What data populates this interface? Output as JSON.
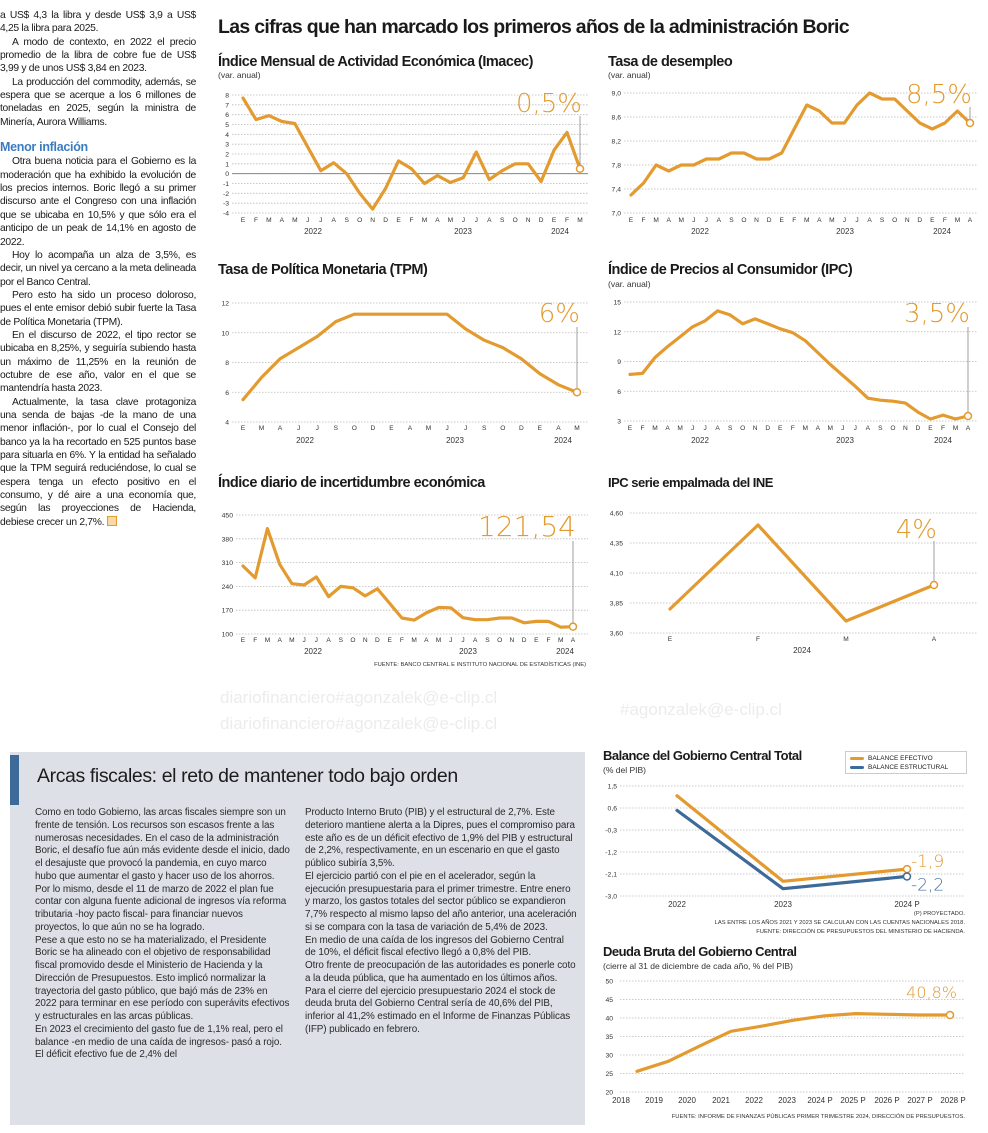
{
  "watermarks": [
    "#agonzalek@e-clip.cl",
    "diariofinanciero#agonzalek@e-clip.cl",
    "diariofinanciero#agonzalek@e-clip.cl"
  ],
  "headline": "Las cifras que han marcado los primeros años de la administración Boric",
  "left_column": {
    "paragraphs_top": [
      "a US$ 4,3 la libra y desde US$ 3,9 a US$ 4,25 la libra para 2025.",
      "A modo de contexto, en 2022 el precio promedio de la libra de cobre fue de US$ 3,99 y de unos US$ 3,84 en 2023.",
      "La producción del commodity, además, se espera que se acerque a los 6 millones de toneladas en 2025, según la ministra de Minería, Aurora Williams."
    ],
    "subheading": "Menor inflación",
    "paragraphs_bottom": [
      "Otra buena noticia para el Gobierno es la moderación que ha exhibido la evolución de los precios internos. Boric llegó a su primer discurso ante el Congreso con una inflación que se ubicaba en 10,5% y que sólo era el anticipo de un peak de 14,1% en agosto de 2022.",
      "Hoy lo acompaña un alza de 3,5%, es decir, un nivel ya cercano a la meta delineada por el Banco Central.",
      "Pero esto ha sido un proceso doloroso, pues el ente emisor debió subir fuerte la Tasa de Política Monetaria (TPM).",
      "En el discurso de 2022, el tipo rector se ubicaba en 8,25%, y seguiría subiendo hasta un máximo de 11,25% en la reunión de octubre de ese año, valor en el que se mantendría hasta 2023.",
      "Actualmente, la tasa clave protagoniza una senda de bajas -de la mano de una menor inflación-, por lo cual el Consejo del banco ya la ha recortado en 525 puntos base para situarla en 6%. Y la entidad ha señalado que la TPM seguirá reduciéndose, lo cual se espera tenga un efecto positivo en el consumo, y dé aire a una economía que, según las proyecciones de Hacienda, debiese crecer un 2,7%."
    ]
  },
  "charts_text": {
    "imacec_title": "Índice Mensual de Actividad Económica (Imacec)",
    "imacec_sub": "(var. anual)",
    "desempleo_title": "Tasa de desempleo",
    "desempleo_sub": "(var. anual)",
    "tpm_title": "Tasa de Política Monetaria (TPM)",
    "ipc_title": "Índice de Precios al Consumidor (IPC)",
    "ipc_sub": "(var. anual)",
    "incert_title": "Índice diario de incertidumbre económica",
    "ipcine_title": "IPC serie empalmada del INE",
    "fuente_top": "FUENTE: BANCO CENTRAL E INSTITUTO NACIONAL DE ESTADÍSTICAS (INE)",
    "balance_title": "Balance del Gobierno Central Total",
    "balance_sub": "(% del PIB)",
    "legend_efectivo": "BALANCE EFECTIVO",
    "legend_estructural": "BALANCE ESTRUCTURAL",
    "balance_note1": "(P) PROYECTADO.",
    "balance_note2": "LAS ENTRE LOS AÑOS 2021 Y 2023 SE CALCULAN  CON LAS CUENTAS NACIONALES 2018.",
    "balance_note3": "FUENTE: DIRECCIÓN DE PRESUPUESTOS DEL MINISTERIO DE HACIENDA.",
    "deuda_title": "Deuda Bruta del Gobierno Central",
    "deuda_sub": "(cierre al 31 de diciembre de cada año, % del PIB)",
    "deuda_fuente": "FUENTE: INFORME DE FINANZAS PÚBLICAS PRIMER TRIMESTRE 2024, DIRECCIÓN DE PRESUPUESTOS."
  },
  "box": {
    "title": "Arcas fiscales: el reto de mantener todo bajo orden",
    "col1": [
      "Como en todo Gobierno, las arcas fiscales siempre son un frente de tensión. Los recursos son escasos frente a las numerosas necesidades. En el caso de la administración Boric, el desafío fue aún más evidente desde el inicio, dado el desajuste que provocó la pandemia, en cuyo marco hubo que aumentar el gasto y hacer uso de los ahorros.",
      "Por lo mismo, desde el 11 de marzo de 2022 el plan fue contar con alguna fuente adicional de ingresos vía reforma tributaria -hoy pacto fiscal- para financiar nuevos proyectos, lo que aún no se ha logrado.",
      "Pese a que esto no se ha materializado, el Presidente Boric se ha alineado con el objetivo de responsabilidad fiscal promovido desde el Ministerio de Hacienda y la Dirección de Presupuestos. Esto implicó normalizar la trayectoria del gasto público, que bajó más de 23% en 2022 para terminar en ese período con superávits efectivos y estructurales en las arcas públicas.",
      "En 2023 el crecimiento del gasto fue de 1,1% real, pero el balance -en medio de una caída de ingresos- pasó a rojo. El déficit efectivo fue de 2,4% del"
    ],
    "col2": [
      "Producto Interno Bruto (PIB) y el estructural de 2,7%. Este deterioro mantiene alerta a la Dipres, pues el compromiso para este año es de un déficit efectivo de 1,9% del PIB y estructural de 2,2%, respectivamente, en un escenario en que el gasto público subiría 3,5%.",
      "El ejercicio partió con el pie en el acelerador, según la ejecución presupuestaria para el primer trimestre. Entre enero y marzo, los gastos totales del sector público se expandieron 7,7% respecto al mismo lapso del año anterior, una aceleración si se compara con la tasa de variación de 5,4% de 2023.",
      "En medio de una caída de los ingresos del Gobierno Central de 10%, el déficit fiscal efectivo llegó a 0,8% del PIB.",
      "Otro frente de preocupación de las autoridades es ponerle coto a la deuda pública, que ha aumentado en los últimos años.",
      "Para el cierre del ejercicio presupuestario 2024 el stock de deuda bruta del Gobierno Central sería de 40,6% del PIB, inferior al 41,2% estimado en el Informe de Finanzas Públicas (IFP) publicado en febrero."
    ]
  },
  "chart_data": [
    {
      "id": "imacec",
      "type": "line",
      "title": "Índice Mensual de Actividad Económica (Imacec)",
      "ylabel": "(var. anual)",
      "ylim": [
        -4,
        8
      ],
      "y_ticks": [
        "8",
        "7",
        "6",
        "5",
        "4",
        "3",
        "2",
        "1",
        "0",
        "-1",
        "-2",
        "-3",
        "-4"
      ],
      "x": [
        "E",
        "F",
        "M",
        "A",
        "M",
        "J",
        "J",
        "A",
        "S",
        "O",
        "N",
        "D",
        "E",
        "F",
        "M",
        "A",
        "M",
        "J",
        "J",
        "A",
        "S",
        "O",
        "N",
        "D",
        "E",
        "F",
        "M"
      ],
      "years": [
        "2022",
        "2023",
        "2024"
      ],
      "series": [
        {
          "color": "#e39a2e",
          "end_label": "0,5%",
          "values": [
            7.7,
            5.5,
            5.9,
            5.3,
            5.1,
            2.7,
            0.3,
            1.1,
            0.0,
            -2.0,
            -3.6,
            -1.5,
            1.3,
            0.5,
            -1.0,
            -0.2,
            -0.9,
            -0.4,
            2.2,
            -0.6,
            0.3,
            1.0,
            1.0,
            -0.8,
            2.4,
            4.2,
            0.5
          ]
        }
      ]
    },
    {
      "id": "desempleo",
      "type": "line",
      "title": "Tasa de desempleo",
      "ylabel": "(var. anual)",
      "ylim": [
        7.0,
        9.0
      ],
      "y_ticks": [
        "9,0",
        "8,6",
        "8,2",
        "7,8",
        "7,4",
        "7,0"
      ],
      "x": [
        "E",
        "F",
        "M",
        "A",
        "M",
        "J",
        "J",
        "A",
        "S",
        "O",
        "N",
        "D",
        "E",
        "F",
        "M",
        "A",
        "M",
        "J",
        "J",
        "A",
        "S",
        "O",
        "N",
        "D",
        "E",
        "F",
        "M",
        "A"
      ],
      "years": [
        "2022",
        "2023",
        "2024"
      ],
      "series": [
        {
          "color": "#e39a2e",
          "end_label": "8,5%",
          "values": [
            7.3,
            7.5,
            7.8,
            7.7,
            7.8,
            7.8,
            7.9,
            7.9,
            8.0,
            8.0,
            7.9,
            7.9,
            8.0,
            8.4,
            8.8,
            8.7,
            8.5,
            8.5,
            8.8,
            9.0,
            8.9,
            8.9,
            8.7,
            8.5,
            8.4,
            8.5,
            8.7,
            8.5
          ]
        }
      ]
    },
    {
      "id": "tpm",
      "type": "line",
      "title": "Tasa de Política Monetaria (TPM)",
      "ylim": [
        4,
        12
      ],
      "y_ticks": [
        "12",
        "10",
        "8",
        "6",
        "4"
      ],
      "x": [
        "E",
        "M",
        "A",
        "J",
        "J",
        "S",
        "O",
        "D",
        "E",
        "A",
        "M",
        "J",
        "J",
        "S",
        "O",
        "D",
        "E",
        "A",
        "M"
      ],
      "years": [
        "2022",
        "2023",
        "2024"
      ],
      "series": [
        {
          "color": "#e39a2e",
          "end_label": "6%",
          "values": [
            5.5,
            7.0,
            8.25,
            9.0,
            9.75,
            10.75,
            11.25,
            11.25,
            11.25,
            11.25,
            11.25,
            11.25,
            10.25,
            9.5,
            9.0,
            8.25,
            7.25,
            6.5,
            6.0
          ]
        }
      ]
    },
    {
      "id": "ipc",
      "type": "line",
      "title": "Índice de Precios al Consumidor (IPC)",
      "ylabel": "(var. anual)",
      "ylim": [
        3,
        15
      ],
      "y_ticks": [
        "15",
        "12",
        "9",
        "6",
        "3"
      ],
      "x": [
        "E",
        "F",
        "M",
        "A",
        "M",
        "J",
        "J",
        "A",
        "S",
        "O",
        "N",
        "D",
        "E",
        "F",
        "M",
        "A",
        "M",
        "J",
        "J",
        "A",
        "S",
        "O",
        "N",
        "D",
        "E",
        "F",
        "M",
        "A"
      ],
      "years": [
        "2022",
        "2023",
        "2024"
      ],
      "series": [
        {
          "color": "#e39a2e",
          "end_label": "3,5%",
          "values": [
            7.7,
            7.8,
            9.4,
            10.5,
            11.5,
            12.5,
            13.1,
            14.1,
            13.7,
            12.8,
            13.3,
            12.8,
            12.3,
            11.9,
            11.1,
            9.9,
            8.7,
            7.6,
            6.5,
            5.3,
            5.1,
            5.0,
            4.8,
            3.9,
            3.2,
            3.6,
            3.2,
            3.5
          ]
        }
      ]
    },
    {
      "id": "incertidumbre",
      "type": "line",
      "title": "Índice diario de incertidumbre económica",
      "ylim": [
        100,
        450
      ],
      "y_ticks": [
        "450",
        "380",
        "310",
        "240",
        "170",
        "100"
      ],
      "x": [
        "E",
        "F",
        "M",
        "A",
        "M",
        "J",
        "J",
        "A",
        "S",
        "O",
        "N",
        "D",
        "E",
        "F",
        "M",
        "A",
        "M",
        "J",
        "J",
        "A",
        "S",
        "O",
        "N",
        "D",
        "E",
        "F",
        "M",
        "A"
      ],
      "years": [
        "2022",
        "2023",
        "2024"
      ],
      "series": [
        {
          "color": "#e39a2e",
          "end_label": "121,54",
          "values": [
            300,
            265,
            410,
            305,
            248,
            244,
            268,
            210,
            240,
            236,
            212,
            233,
            190,
            147,
            141,
            162,
            178,
            177,
            148,
            142,
            142,
            147,
            147,
            133,
            137,
            137,
            120,
            121.54
          ]
        }
      ]
    },
    {
      "id": "ipc_ine",
      "type": "line",
      "title": "IPC serie empalmada del INE",
      "ylim": [
        3.6,
        4.6
      ],
      "y_ticks": [
        "4,60",
        "4,35",
        "4,10",
        "3,85",
        "3,60"
      ],
      "x": [
        "E",
        "F",
        "M",
        "A"
      ],
      "years": [
        "2024"
      ],
      "series": [
        {
          "color": "#e39a2e",
          "end_label": "4%",
          "values": [
            3.8,
            4.5,
            3.7,
            4.0
          ]
        }
      ]
    },
    {
      "id": "balance",
      "type": "line",
      "title": "Balance del Gobierno Central Total",
      "ylabel": "(% del PIB)",
      "ylim": [
        -3.0,
        1.5
      ],
      "y_ticks": [
        "1,5",
        "0,6",
        "-0,3",
        "-1,2",
        "-2,1",
        "-3,0"
      ],
      "x": [
        "2022",
        "2023",
        "2024 P"
      ],
      "legend": "top-right",
      "series": [
        {
          "name": "BALANCE EFECTIVO",
          "color": "#e39a2e",
          "end_label": "-1,9",
          "values": [
            1.1,
            -2.4,
            -1.9
          ]
        },
        {
          "name": "BALANCE ESTRUCTURAL",
          "color": "#3d6a99",
          "end_label": "-2,2",
          "values": [
            0.5,
            -2.7,
            -2.2
          ]
        }
      ]
    },
    {
      "id": "deuda",
      "type": "line",
      "title": "Deuda Bruta del Gobierno Central",
      "ylabel": "(cierre al 31 de diciembre de cada año, % del PIB)",
      "ylim": [
        20,
        50
      ],
      "y_ticks": [
        "50",
        "45",
        "40",
        "35",
        "30",
        "25",
        "20"
      ],
      "x": [
        "2018",
        "2019",
        "2020",
        "2021",
        "2022",
        "2023",
        "2024 P",
        "2025 P",
        "2026 P",
        "2027 P",
        "2028 P"
      ],
      "series": [
        {
          "color": "#e39a2e",
          "end_label": "40,8%",
          "values": [
            25.6,
            28.3,
            32.4,
            36.4,
            37.8,
            39.4,
            40.6,
            41.2,
            41.0,
            40.8,
            40.8
          ]
        }
      ]
    }
  ]
}
